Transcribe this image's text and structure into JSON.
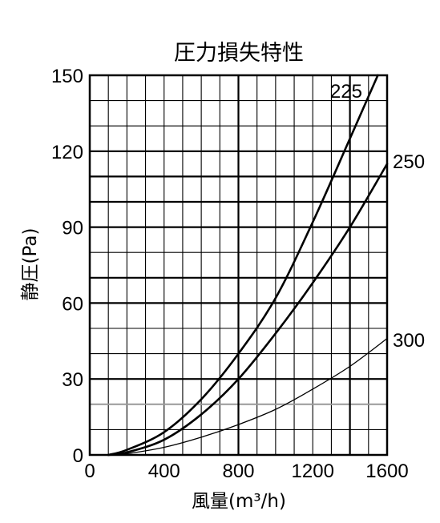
{
  "chart_data": {
    "type": "line",
    "title": "圧力損失特性",
    "xlabel": "風量(m³/h)",
    "ylabel": "静圧(Pa)",
    "xlim": [
      0,
      1600
    ],
    "ylim": [
      0,
      150
    ],
    "x_ticks": [
      "0",
      "400",
      "800",
      "1200",
      "1600"
    ],
    "y_ticks": [
      "0",
      "30",
      "60",
      "90",
      "120",
      "150"
    ],
    "grid": true,
    "series": [
      {
        "name": "225",
        "x": [
          100,
          200,
          400,
          600,
          800,
          1000,
          1200,
          1400,
          1550
        ],
        "y": [
          0,
          2,
          9,
          22,
          40,
          62,
          92,
          125,
          150
        ]
      },
      {
        "name": "250",
        "x": [
          100,
          200,
          400,
          600,
          800,
          1000,
          1200,
          1400,
          1600
        ],
        "y": [
          0,
          1,
          6,
          16,
          30,
          48,
          68,
          90,
          115
        ]
      },
      {
        "name": "300",
        "x": [
          100,
          200,
          400,
          600,
          800,
          1000,
          1200,
          1400,
          1600
        ],
        "y": [
          0,
          0.5,
          3,
          7,
          12,
          18,
          26,
          35,
          46
        ]
      }
    ]
  }
}
